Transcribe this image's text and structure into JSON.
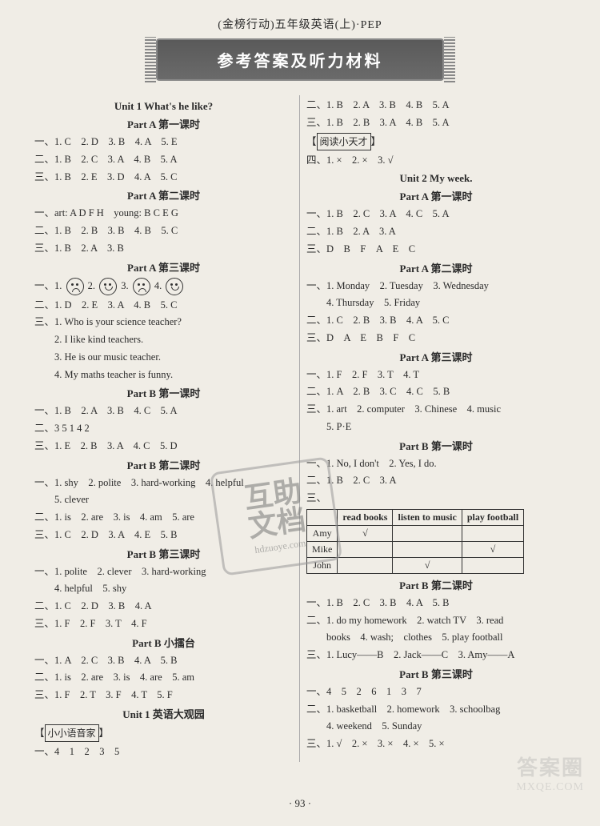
{
  "header": {
    "subtitle": "(金榜行动)五年级英语(上)·PEP",
    "banner": "参考答案及听力材料"
  },
  "left": {
    "unit1_title": "Unit 1 What's he like?",
    "partA1": "Part A 第一课时",
    "a1_l1": "一、1. C　2. D　3. B　4. A　5. E",
    "a1_l2": "二、1. B　2. C　3. A　4. B　5. A",
    "a1_l3": "三、1. B　2. E　3. D　4. A　5. C",
    "partA2": "Part A 第二课时",
    "a2_l1": "一、art: A D F H　young: B C E G",
    "a2_l2": "二、1. B　2. B　3. B　4. B　5. C",
    "a2_l3": "三、1. B　2. A　3. B",
    "partA3": "Part A 第三课时",
    "a3_faces_prefix": "一、1.",
    "a3_faces_2": "2.",
    "a3_faces_3": "3.",
    "a3_faces_4": "4.",
    "a3_l2": "二、1. D　2. E　3. A　4. B　5. C",
    "a3_l3a": "三、1. Who is your science teacher?",
    "a3_l3b": "　　2. I like kind teachers.",
    "a3_l3c": "　　3. He is our music teacher.",
    "a3_l3d": "　　4. My maths teacher is funny.",
    "partB1": "Part B 第一课时",
    "b1_l1": "一、1. B　2. A　3. B　4. C　5. A",
    "b1_l2": "二、3 5 1 4 2",
    "b1_l3": "三、1. E　2. B　3. A　4. C　5. D",
    "partB2": "Part B 第二课时",
    "b2_l1a": "一、1. shy　2. polite　3. hard-working　4. helpful",
    "b2_l1b": "　　5. clever",
    "b2_l2": "二、1. is　2. are　3. is　4. am　5. are",
    "b2_l3": "三、1. C　2. D　3. A　4. E　5. B",
    "partB3": "Part B 第三课时",
    "b3_l1a": "一、1. polite　2. clever　3. hard-working",
    "b3_l1b": "　　4. helpful　5. shy",
    "b3_l2": "二、1. C　2. D　3. B　4. A",
    "b3_l3": "三、1. F　2. F　3. T　4. F",
    "partBlt": "Part B 小擂台",
    "lt_l1": "一、1. A　2. C　3. B　4. A　5. B",
    "lt_l2": "二、1. is　2. are　3. is　4. are　5. am",
    "lt_l3": "三、1. F　2. T　3. F　4. T　5. F",
    "unit1_big": "Unit 1 英语大观园",
    "box1": "小小语音家",
    "big_l1": "一、4　1　2　3　5"
  },
  "right": {
    "r0_l1": "二、1. B　2. A　3. B　4. B　5. A",
    "r0_l2": "三、1. B　2. B　3. A　4. B　5. A",
    "box2": "阅读小天才",
    "r0_l3": "四、1. ×　2. ×　3. √",
    "unit2_title": "Unit 2 My week.",
    "partA1": "Part A 第一课时",
    "a1_l1": "一、1. B　2. C　3. A　4. C　5. A",
    "a1_l2": "二、1. B　2. A　3. A",
    "a1_l3": "三、D　B　F　A　E　C",
    "partA2": "Part A 第二课时",
    "a2_l1a": "一、1. Monday　2. Tuesday　3. Wednesday",
    "a2_l1b": "　　4. Thursday　5. Friday",
    "a2_l2": "二、1. C　2. B　3. B　4. A　5. C",
    "a2_l3": "三、D　A　E　B　F　C",
    "partA3": "Part A 第三课时",
    "a3_l1": "一、1. F　2. F　3. T　4. T",
    "a3_l2": "二、1. A　2. B　3. C　4. C　5. B",
    "a3_l3a": "三、1. art　2. computer　3. Chinese　4. music",
    "a3_l3b": "　　5. P·E",
    "partB1": "Part B 第一课时",
    "b1_l1": "一、1. No, I don't　2. Yes, I do.",
    "b1_l2": "二、1. B　2. C　3. A",
    "b1_l3": "三、",
    "table": {
      "headers": [
        "",
        "read books",
        "listen to music",
        "play football"
      ],
      "rows": [
        [
          "Amy",
          "√",
          "",
          ""
        ],
        [
          "Mike",
          "",
          "",
          "√"
        ],
        [
          "John",
          "",
          "√",
          ""
        ]
      ]
    },
    "partB2": "Part B 第二课时",
    "b2_l1": "一、1. B　2. C　3. B　4. A　5. B",
    "b2_l2a": "二、1. do my homework　2. watch TV　3. read",
    "b2_l2b": "　　books　4. wash;　clothes　5. play football",
    "b2_l3": "三、1. Lucy——B　2. Jack——C　3. Amy——A",
    "partB3": "Part B 第三课时",
    "b3_l1": "一、4　5　2　6　1　3　7",
    "b3_l2a": "二、1. basketball　2. homework　3. schoolbag",
    "b3_l2b": "　　4. weekend　5. Sunday",
    "b3_l3": "三、1. √　2. ×　3. ×　4. ×　5. ×"
  },
  "stamp": {
    "line1": "互助",
    "line2": "文档",
    "url": "hdzuoye.com"
  },
  "watermark": {
    "line1": "答案圈",
    "line2": "MXQE.COM"
  },
  "page_num": "· 93 ·"
}
